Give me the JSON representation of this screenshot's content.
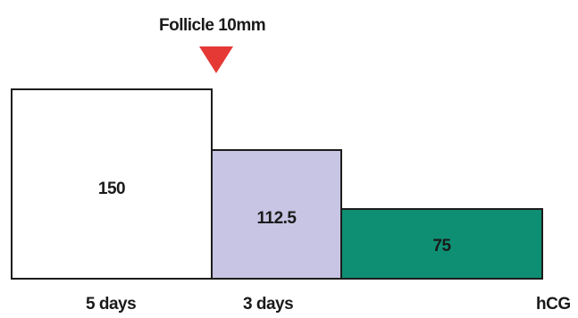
{
  "marker": {
    "label": "Follicle 10mm",
    "arrow_color": "#e53935"
  },
  "blocks": [
    {
      "value": "150",
      "color": "#ffffff"
    },
    {
      "value": "112.5",
      "color": "#c7c5e3"
    },
    {
      "value": "75",
      "color": "#0e8f73"
    }
  ],
  "timeline_labels": [
    "5 days",
    "3 days",
    "hCG"
  ]
}
